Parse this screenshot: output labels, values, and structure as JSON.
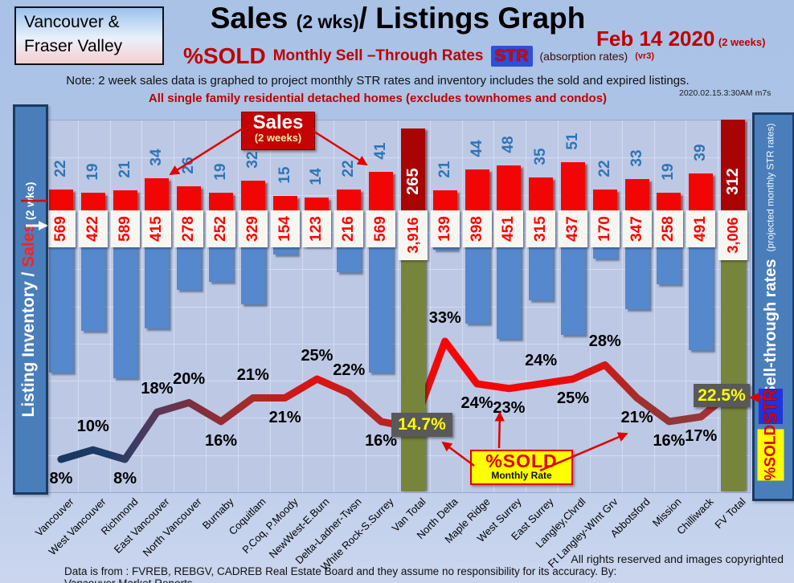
{
  "header": {
    "region_line1": "Vancouver &",
    "region_line2": "Fraser Valley",
    "title_main": "Sales ",
    "title_paren": "(2 wks)",
    "title_rest": "/ Listings Graph",
    "date": "Feb 14 2020",
    "date_note": "(2 weeks)",
    "pct_sold": "%SOLD",
    "str_line": "Monthly Sell –Through Rates",
    "str_badge": "STR",
    "absorption": "(absorption rates)",
    "version": "(vr3)",
    "note": "Note: 2 week sales data is graphed to project monthly STR rates and inventory includes the sold and expired listings.",
    "subtitle": "All single family residential detached homes (excludes townhomes and condos)",
    "timestamp": "2020.02.15.3:30AM m7s"
  },
  "left_axis": {
    "label_white": "Listing Inventory / ",
    "label_red": "Sales",
    "label_suffix": " (2  wks)"
  },
  "right_axis": {
    "label": "Sell-through rates",
    "sublabel": "(projected monthly STR rates)",
    "str_badge": "STR",
    "pct_sold_badge": "%SOLD"
  },
  "callouts": {
    "sales_box_title": "Sales",
    "sales_box_sub": "(2 weeks)",
    "pct_sold_box_title": "%SOLD",
    "pct_sold_box_sub": "Monthly Rate",
    "van_total_rate": "14.7%",
    "fv_total_rate": "22.5%"
  },
  "footer": {
    "rights": "All rights reserved and  images copyrighted",
    "source": "Data is from : FVREB, REBGV, CADREB Real Estate Board and they assume no responsibility for its accuracy. By: Vancouver Market Reports"
  },
  "chart_data": {
    "type": "combo: bar (sales, inventory) + line (sell-through rate %)",
    "categories": [
      "Vancouver",
      "West Vancouver",
      "Richmond",
      "East Vancouver",
      "North Vancouver",
      "Burnaby",
      "Coquitlam",
      "P.Coq, P.Moody",
      "NewWest-E.Burn",
      "Delta-Ladner-Twsn",
      "White Rock-S.Surrey",
      "Van Total",
      "North Delta",
      "Maple Ridge",
      "West Surrey",
      "East Surrey",
      "Langley,Clvrdl",
      "Ft Langley-WInt Grv",
      "Abbotsford",
      "Mission",
      "Chilliwack",
      "FV Total"
    ],
    "series": [
      {
        "name": "Sales (2 weeks)",
        "color": "#f20505",
        "total_color": "#a80404",
        "values": [
          22,
          19,
          21,
          34,
          26,
          19,
          32,
          15,
          14,
          22,
          41,
          265,
          21,
          44,
          48,
          35,
          51,
          22,
          33,
          19,
          39,
          312
        ]
      },
      {
        "name": "Listing Inventory",
        "color": "#5588cc",
        "total_color": "#76853b",
        "values": [
          569,
          422,
          589,
          415,
          278,
          252,
          329,
          154,
          123,
          216,
          569,
          3916,
          139,
          398,
          451,
          315,
          437,
          170,
          347,
          258,
          491,
          3006
        ],
        "labels": [
          "569",
          "422",
          "589",
          "415",
          "278",
          "252",
          "329",
          "154",
          "123",
          "216",
          "569",
          "3,916",
          "139",
          "398",
          "451",
          "315",
          "437",
          "170",
          "347",
          "258",
          "491",
          "3,006"
        ]
      },
      {
        "name": "%SOLD Monthly Rate (STR)",
        "color": "gradient navy-to-red",
        "values": [
          8,
          10,
          8,
          18,
          20,
          16,
          21,
          21,
          25,
          22,
          16,
          14.7,
          33,
          24,
          23,
          24,
          25,
          28,
          21,
          16,
          17,
          22.5
        ],
        "labels": [
          "8%",
          "10%",
          "8%",
          "18%",
          "20%",
          "16%",
          "21%",
          "21%",
          "25%",
          "22%",
          "16%",
          "14.7%",
          "33%",
          "24%",
          "23%",
          "24%",
          "25%",
          "28%",
          "21%",
          "16%",
          "17%",
          "22.5%"
        ],
        "label_side": [
          "below",
          "above",
          "below",
          "above",
          "above",
          "below",
          "above",
          "below",
          "above",
          "above",
          "below",
          "box",
          "above",
          "below",
          "below",
          "above",
          "below",
          "above",
          "below",
          "below",
          "below",
          "box"
        ]
      }
    ],
    "total_columns": [
      11,
      21
    ],
    "legend_position": "vertical axis bars on both sides",
    "grid": true
  }
}
